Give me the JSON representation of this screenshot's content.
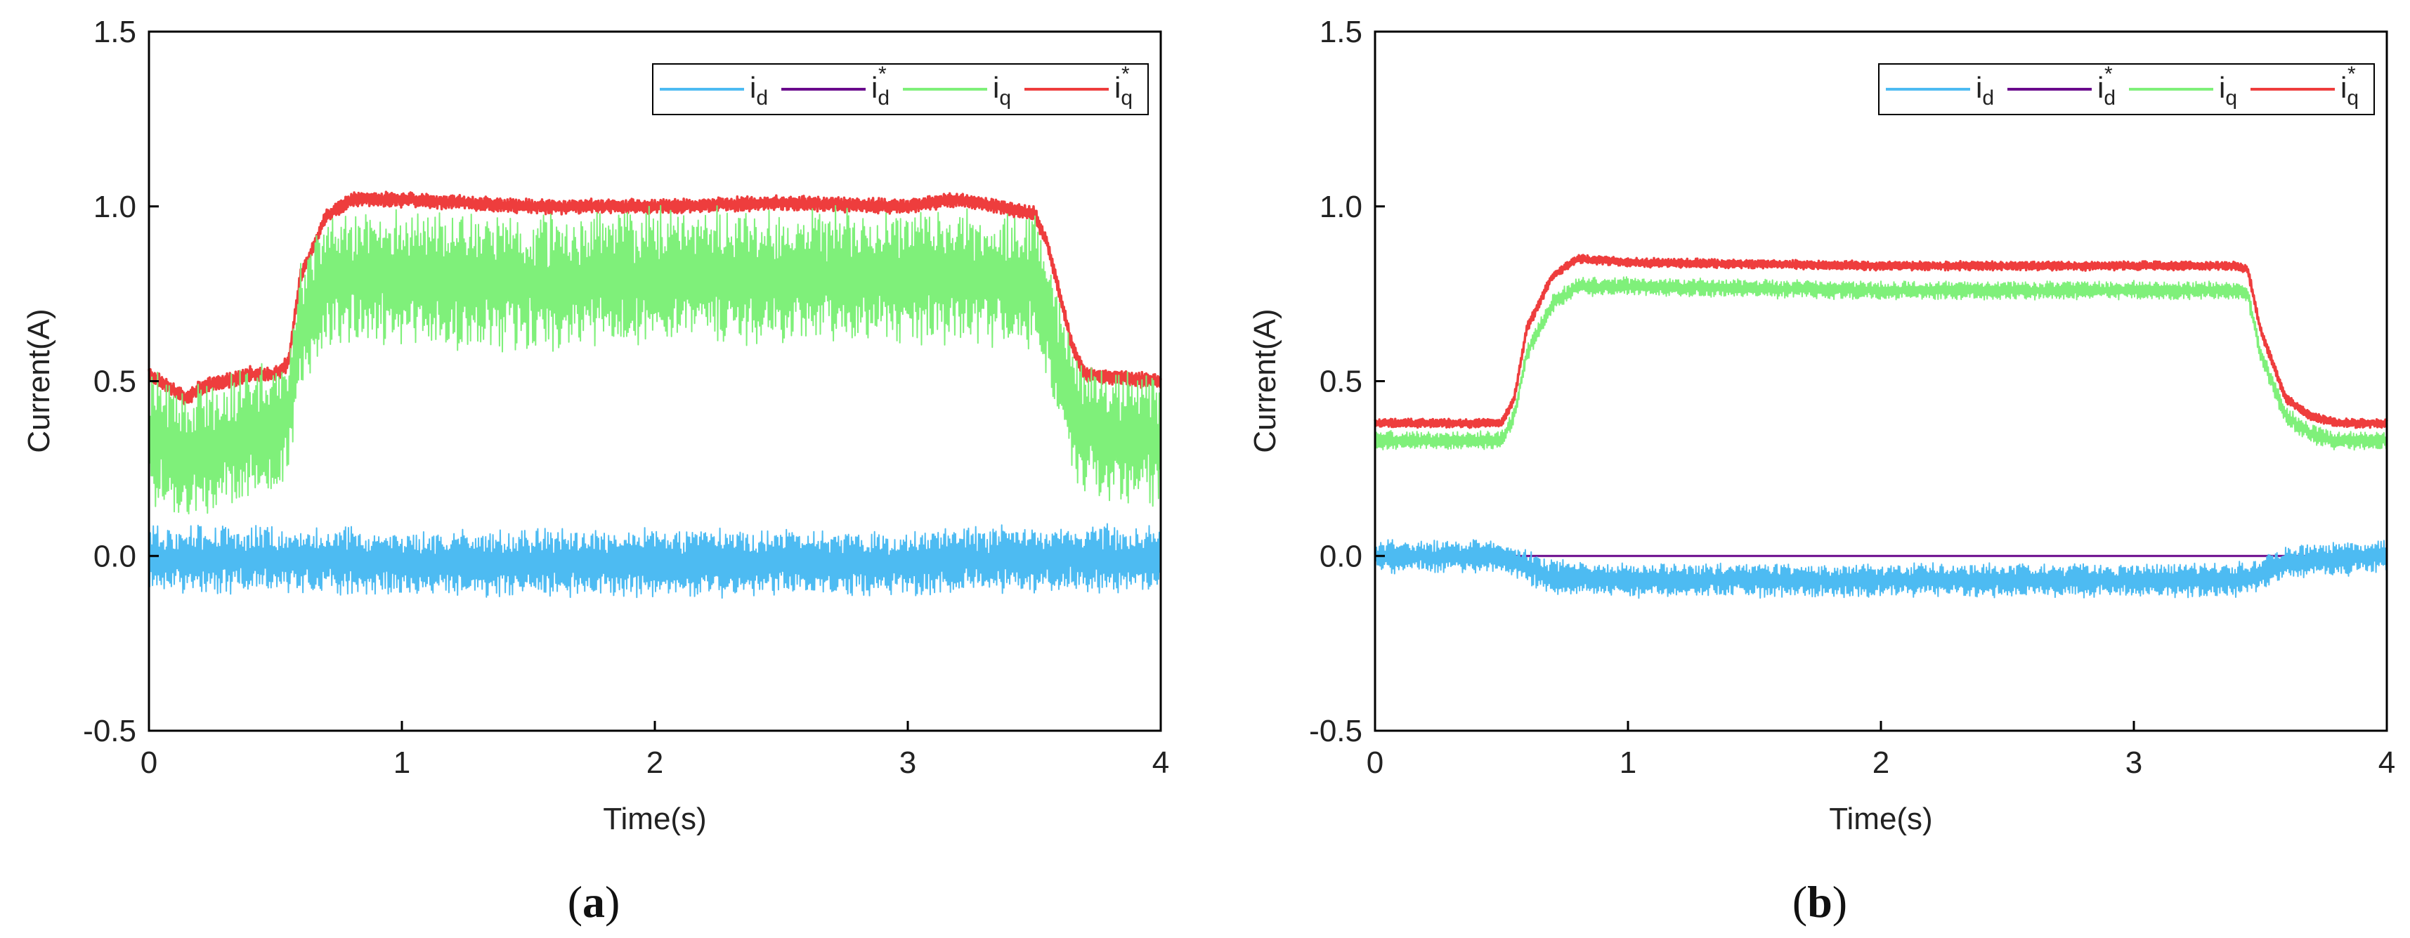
{
  "figure": {
    "panels": [
      "(a)",
      "(b)"
    ]
  },
  "colors": {
    "i_d": "#4dbbf2",
    "i_d_ref": "#6a0a8c",
    "i_q": "#7ff07a",
    "i_q_ref": "#ee3d3d"
  },
  "chart_data": [
    {
      "type": "line",
      "panel_label": "a",
      "xlabel": "Time(s)",
      "ylabel": "Current(A)",
      "xlim": [
        0,
        4
      ],
      "ylim": [
        -0.5,
        1.5
      ],
      "xticks": [
        0,
        1,
        2,
        3,
        4
      ],
      "xtick_labels": [
        "0",
        "1",
        "2",
        "3",
        "4"
      ],
      "yticks": [
        -0.5,
        0.0,
        0.5,
        1.0,
        1.5
      ],
      "ytick_labels": [
        "-0.5",
        "0.0",
        "0.5",
        "1.0",
        "1.5"
      ],
      "legend_position": "top-right",
      "legend": [
        {
          "main": "i",
          "sub": "d",
          "sup": ""
        },
        {
          "main": "i",
          "sub": "d",
          "sup": "*"
        },
        {
          "main": "i",
          "sub": "q",
          "sup": ""
        },
        {
          "main": "i",
          "sub": "q",
          "sup": "*"
        }
      ],
      "series": [
        {
          "name": "i_q*",
          "x": [
            0,
            0.15,
            0.2,
            0.3,
            0.4,
            0.5,
            0.55,
            0.6,
            0.7,
            0.8,
            1.0,
            1.5,
            2.0,
            2.5,
            3.0,
            3.2,
            3.5,
            3.55,
            3.6,
            3.65,
            3.7,
            3.8,
            4.0
          ],
          "y": [
            0.52,
            0.45,
            0.48,
            0.5,
            0.52,
            0.52,
            0.55,
            0.8,
            0.97,
            1.02,
            1.02,
            1.0,
            1.0,
            1.01,
            1.0,
            1.02,
            0.98,
            0.9,
            0.75,
            0.6,
            0.52,
            0.51,
            0.5
          ],
          "noise": 0.02
        },
        {
          "name": "i_q",
          "x": [
            0,
            0.15,
            0.2,
            0.3,
            0.4,
            0.5,
            0.55,
            0.6,
            0.7,
            0.8,
            1.0,
            1.5,
            2.0,
            2.5,
            3.0,
            3.2,
            3.5,
            3.55,
            3.6,
            3.65,
            3.7,
            3.8,
            4.0
          ],
          "y": [
            0.35,
            0.28,
            0.3,
            0.32,
            0.35,
            0.35,
            0.4,
            0.65,
            0.78,
            0.8,
            0.8,
            0.78,
            0.8,
            0.8,
            0.8,
            0.8,
            0.78,
            0.7,
            0.55,
            0.42,
            0.36,
            0.34,
            0.33
          ],
          "noise": 0.18
        },
        {
          "name": "i_d*",
          "x": [
            0,
            4
          ],
          "y": [
            0.0,
            0.0
          ],
          "noise": 0
        },
        {
          "name": "i_d",
          "x": [
            0,
            0.5,
            1.0,
            2.0,
            3.0,
            3.5,
            4.0
          ],
          "y": [
            -0.01,
            -0.01,
            -0.02,
            -0.02,
            -0.02,
            -0.01,
            -0.01
          ],
          "noise": 0.09
        }
      ]
    },
    {
      "type": "line",
      "panel_label": "b",
      "xlabel": "Time(s)",
      "ylabel": "Current(A)",
      "xlim": [
        0,
        4
      ],
      "ylim": [
        -0.5,
        1.5
      ],
      "xticks": [
        0,
        1,
        2,
        3,
        4
      ],
      "xtick_labels": [
        "0",
        "1",
        "2",
        "3",
        "4"
      ],
      "yticks": [
        -0.5,
        0.0,
        0.5,
        1.0,
        1.5
      ],
      "ytick_labels": [
        "-0.5",
        "0.0",
        "0.5",
        "1.0",
        "1.5"
      ],
      "legend_position": "top-right",
      "legend": [
        {
          "main": "i",
          "sub": "d",
          "sup": ""
        },
        {
          "main": "i",
          "sub": "d",
          "sup": "*"
        },
        {
          "main": "i",
          "sub": "q",
          "sup": ""
        },
        {
          "main": "i",
          "sub": "q",
          "sup": "*"
        }
      ],
      "series": [
        {
          "name": "i_q*",
          "x": [
            0,
            0.5,
            0.55,
            0.6,
            0.7,
            0.8,
            1.0,
            2.0,
            3.0,
            3.4,
            3.45,
            3.5,
            3.6,
            3.7,
            3.8,
            4.0
          ],
          "y": [
            0.38,
            0.38,
            0.45,
            0.65,
            0.8,
            0.85,
            0.84,
            0.83,
            0.83,
            0.83,
            0.82,
            0.65,
            0.45,
            0.4,
            0.38,
            0.38
          ],
          "noise": 0.012
        },
        {
          "name": "i_q",
          "x": [
            0,
            0.5,
            0.55,
            0.6,
            0.7,
            0.8,
            1.0,
            2.0,
            3.0,
            3.4,
            3.45,
            3.5,
            3.6,
            3.7,
            3.8,
            4.0
          ],
          "y": [
            0.33,
            0.33,
            0.4,
            0.58,
            0.72,
            0.77,
            0.77,
            0.76,
            0.76,
            0.76,
            0.75,
            0.58,
            0.4,
            0.35,
            0.33,
            0.33
          ],
          "noise": 0.025
        },
        {
          "name": "i_d*",
          "x": [
            0,
            4
          ],
          "y": [
            0.0,
            0.0
          ],
          "noise": 0
        },
        {
          "name": "i_d",
          "x": [
            0,
            0.5,
            0.6,
            0.7,
            1.0,
            2.0,
            3.0,
            3.4,
            3.5,
            3.6,
            4.0
          ],
          "y": [
            0.0,
            0.0,
            -0.03,
            -0.06,
            -0.07,
            -0.07,
            -0.07,
            -0.07,
            -0.05,
            -0.02,
            0.0
          ],
          "noise": 0.045
        }
      ]
    }
  ]
}
